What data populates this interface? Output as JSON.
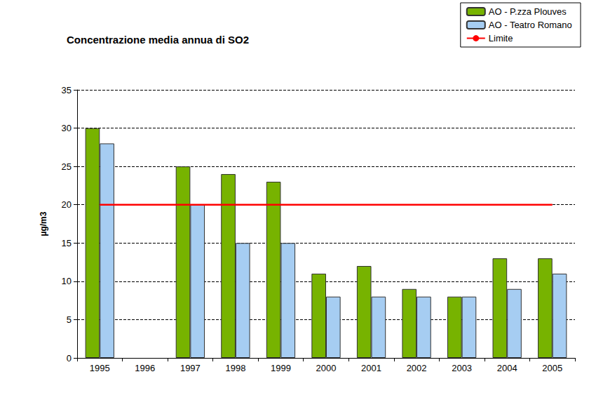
{
  "chart_data": {
    "type": "bar",
    "title": "Concentrazione media annua di SO2",
    "ylabel": "µg/m3",
    "categories": [
      "1995",
      "1996",
      "1997",
      "1998",
      "1999",
      "2000",
      "2001",
      "2002",
      "2003",
      "2004",
      "2005"
    ],
    "series": [
      {
        "name": "AO - P.zza Plouves",
        "type": "bar",
        "color": "#77b300",
        "values": [
          30,
          null,
          25,
          24,
          23,
          11,
          12,
          9,
          8,
          13,
          13
        ]
      },
      {
        "name": "AO - Teatro Romano",
        "type": "bar",
        "color": "#a6cdf2",
        "values": [
          28,
          null,
          20,
          15,
          15,
          8,
          8,
          8,
          8,
          9,
          11
        ]
      },
      {
        "name": "Limite",
        "type": "line",
        "color": "#ff0000",
        "values": [
          20,
          20,
          20,
          20,
          20,
          20,
          20,
          20,
          20,
          20,
          20
        ]
      }
    ],
    "ylim": [
      0,
      35
    ],
    "yticks": [
      0,
      5,
      10,
      15,
      20,
      25,
      30,
      35
    ],
    "grid": true,
    "legend": "upper right"
  }
}
